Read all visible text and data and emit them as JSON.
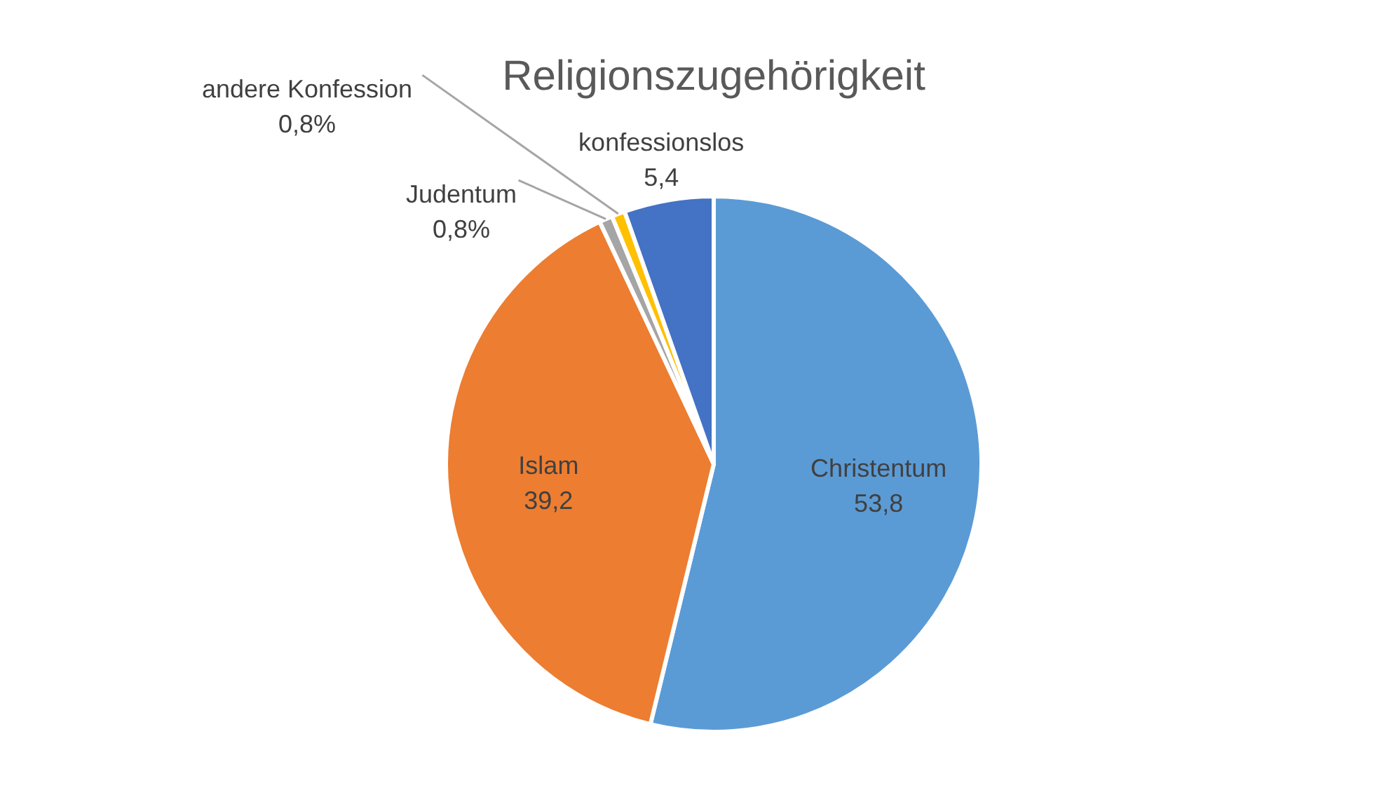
{
  "chart_data": {
    "type": "pie",
    "title": "Religionszugehörigkeit",
    "categories": [
      "Christentum",
      "Islam",
      "Judentum",
      "andere Konfession",
      "konfessionslos"
    ],
    "values": [
      53.8,
      39.2,
      0.8,
      0.8,
      5.4
    ],
    "colors": [
      "#5b9bd5",
      "#ed7d31",
      "#a5a5a5",
      "#ffc000",
      "#4472c4"
    ],
    "value_labels": [
      "53,8",
      "39,2",
      "0,8%",
      "0,8%",
      "5,4"
    ]
  }
}
